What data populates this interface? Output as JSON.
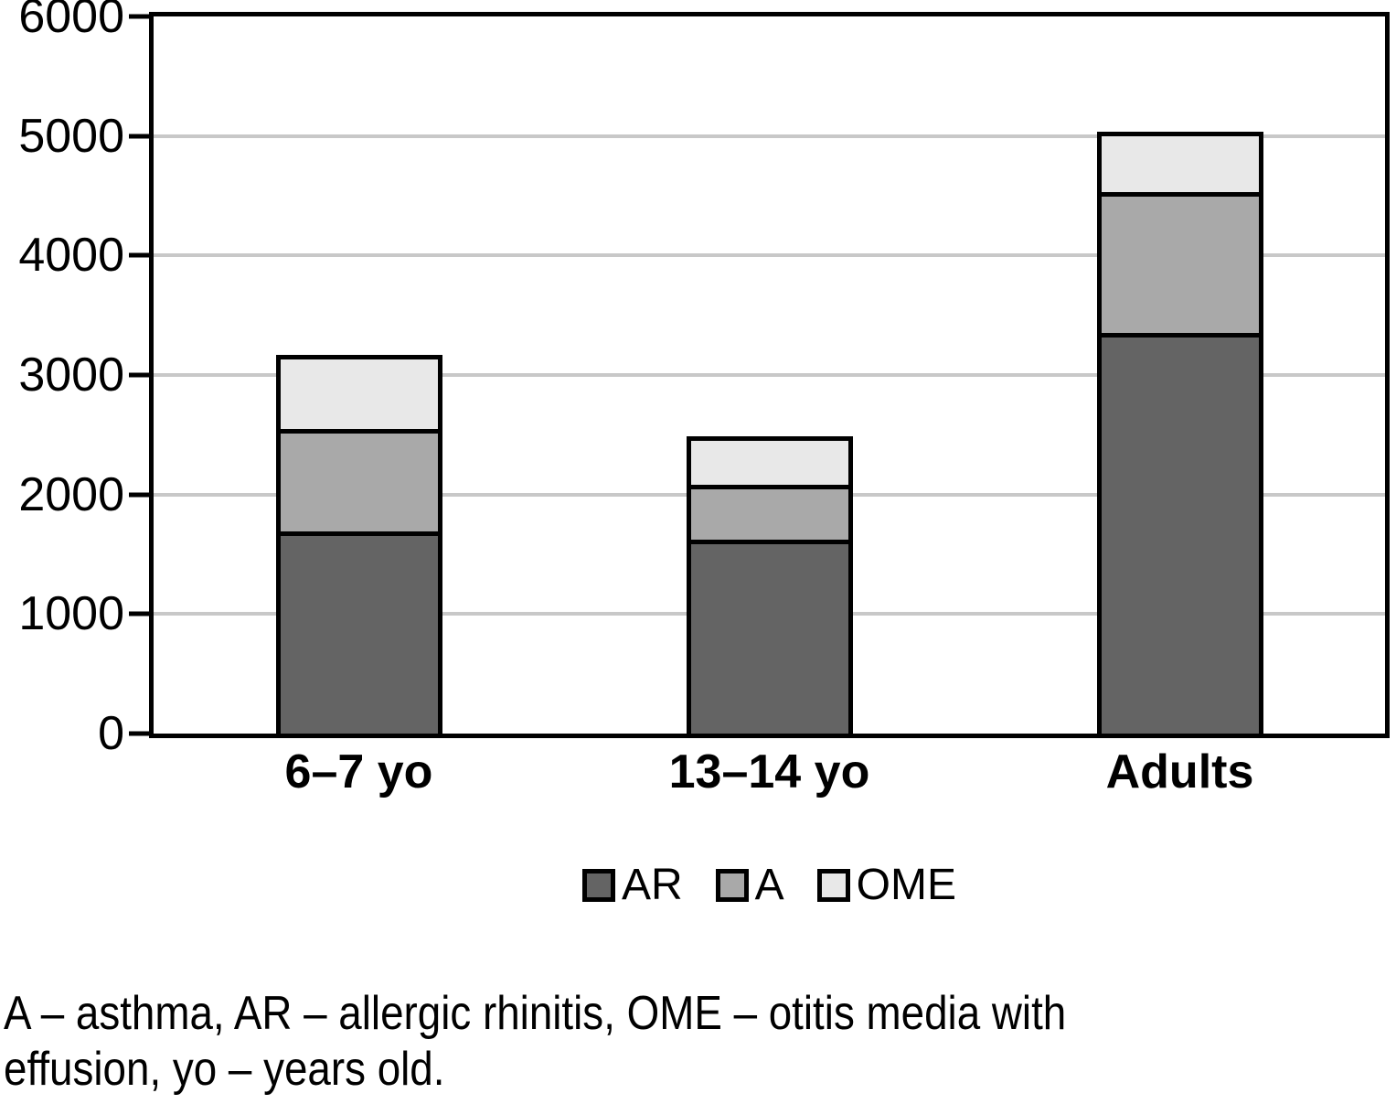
{
  "figure": {
    "background": "#ffffff"
  },
  "caption": {
    "line1": "A – asthma, AR – allergic rhinitis, OME – otitis media with",
    "line2": "effusion, yo – years old."
  },
  "chart_data": {
    "type": "bar",
    "stacked": true,
    "title": "",
    "xlabel": "",
    "ylabel": "",
    "categories": [
      "6–7 yo",
      "13–14 yo",
      "Adults"
    ],
    "series": [
      {
        "name": "AR",
        "color": "#646464",
        "values": [
          1690,
          1620,
          3350
        ]
      },
      {
        "name": "A",
        "color": "#a9a9a9",
        "values": [
          860,
          460,
          1180
        ]
      },
      {
        "name": "OME",
        "color": "#e8e8e8",
        "values": [
          580,
          370,
          470
        ]
      }
    ],
    "stack_totals": [
      3130,
      2450,
      5000
    ],
    "ylim": [
      0,
      6000
    ],
    "yticks": [
      0,
      1000,
      2000,
      3000,
      4000,
      5000,
      6000
    ],
    "grid": "horizontal",
    "gridline_color": "#c8c8c8",
    "axis_color": "#000000",
    "bar_border_color": "#000000",
    "legend_position": "bottom-center"
  }
}
